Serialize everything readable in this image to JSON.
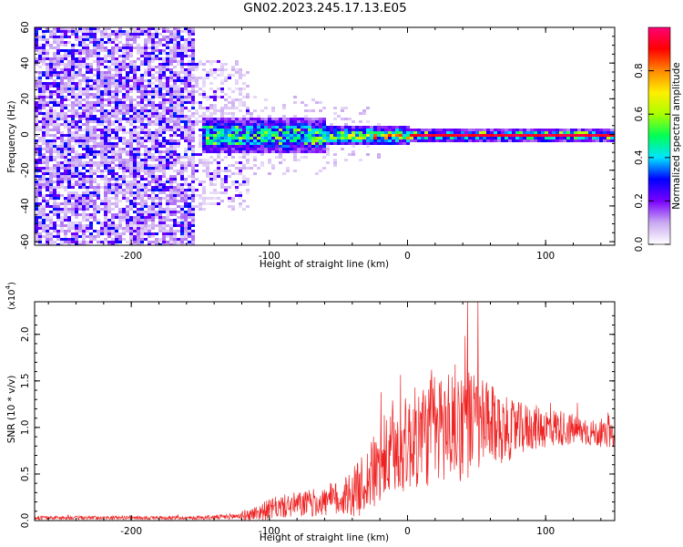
{
  "title": "GN02.2023.245.17.13.E05",
  "colors": {
    "line": "#ee2222",
    "ridge": "#ee2222",
    "axis": "#000000"
  },
  "chart_data": [
    {
      "type": "heatmap",
      "xlabel": "Height of straight line (km)",
      "ylabel": "Frequency (Hz)",
      "xlim": [
        -270,
        150
      ],
      "ylim": [
        -62,
        60
      ],
      "x_ticks": [
        "-200",
        "-100",
        "0",
        "100"
      ],
      "x_tick_values": [
        -200,
        -100,
        0,
        100
      ],
      "y_ticks": [
        "-60",
        "-40",
        "-20",
        "0",
        "20",
        "40",
        "60"
      ],
      "y_tick_values": [
        -60,
        -40,
        -20,
        0,
        20,
        40,
        60
      ],
      "colorbar": {
        "label": "Normalized spectral amplitude",
        "range": [
          0,
          1
        ],
        "ticks": [
          "0.0",
          "0.2",
          "0.4",
          "0.6",
          "0.8"
        ],
        "tick_values": [
          0,
          0.2,
          0.4,
          0.6,
          0.8
        ],
        "colormap": [
          "#ffffff",
          "#c9a8f0",
          "#7a00ff",
          "#0000ff",
          "#00e5ff",
          "#00ff55",
          "#aaff00",
          "#ffee00",
          "#ff8800",
          "#ff0000",
          "#ff0077"
        ]
      },
      "regions": [
        {
          "x_range": [
            -270,
            -155
          ],
          "freq_half_width": 60,
          "amplitude": 0.12,
          "note": "broadband noise"
        },
        {
          "x_range": [
            -155,
            -115
          ],
          "freq_half_width": 42,
          "amplitude": 0.08
        },
        {
          "x_range": [
            -150,
            -60
          ],
          "freq_half_width": 10,
          "amplitude": 0.3
        },
        {
          "x_range": [
            -60,
            0
          ],
          "freq_half_width": 5,
          "amplitude": 0.45
        },
        {
          "x_range": [
            0,
            150
          ],
          "freq_half_width": 3,
          "amplitude": 0.95,
          "note": "narrow line near 0 Hz"
        }
      ]
    },
    {
      "type": "line",
      "xlabel": "Height of straight line (km)",
      "ylabel": "SNR (10 * v/v)",
      "y_scale_label": "(x10",
      "y_scale_exponent": "4",
      "y_scale_suffix": ")",
      "xlim": [
        -270,
        150
      ],
      "ylim": [
        0,
        2.35
      ],
      "x_ticks": [
        "-200",
        "-100",
        "0",
        "100"
      ],
      "x_tick_values": [
        -200,
        -100,
        0,
        100
      ],
      "y_ticks": [
        "0.0",
        "0.5",
        "1.0",
        "1.5",
        "2.0"
      ],
      "y_tick_values": [
        0,
        0.5,
        1.0,
        1.5,
        2.0
      ],
      "envelope_x": [
        -270,
        -240,
        -210,
        -180,
        -150,
        -130,
        -115,
        -105,
        -95,
        -80,
        -60,
        -45,
        -35,
        -25,
        -15,
        -5,
        5,
        15,
        25,
        35,
        45,
        55,
        65,
        75,
        90,
        110,
        130,
        150
      ],
      "envelope_mean": [
        0.03,
        0.03,
        0.03,
        0.03,
        0.03,
        0.04,
        0.06,
        0.1,
        0.14,
        0.17,
        0.2,
        0.25,
        0.35,
        0.5,
        0.65,
        0.78,
        0.88,
        0.95,
        1.0,
        1.05,
        1.05,
        1.02,
        1.0,
        0.97,
        1.0,
        1.0,
        0.95,
        0.9
      ],
      "envelope_spread": [
        0.02,
        0.02,
        0.02,
        0.02,
        0.02,
        0.03,
        0.06,
        0.1,
        0.12,
        0.14,
        0.16,
        0.22,
        0.3,
        0.4,
        0.45,
        0.5,
        0.55,
        0.6,
        0.62,
        0.65,
        0.6,
        0.5,
        0.4,
        0.32,
        0.25,
        0.2,
        0.15,
        0.12
      ],
      "peak": {
        "x": 51,
        "y": 2.35
      }
    }
  ]
}
